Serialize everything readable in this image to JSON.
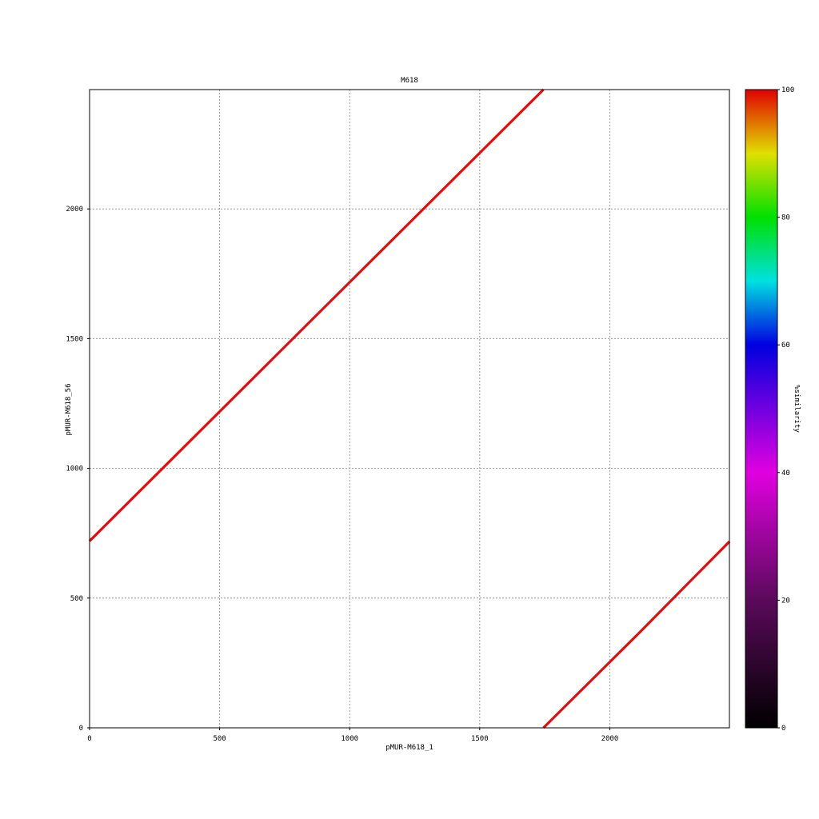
{
  "chart_data": {
    "type": "scatter",
    "title": "M618",
    "xlabel": "pMUR-M618_1",
    "ylabel": "pMUR-M618_56",
    "xlim": [
      0,
      2460
    ],
    "ylim": [
      0,
      2460
    ],
    "x_ticks": [
      0,
      500,
      1000,
      1500,
      2000
    ],
    "y_ticks": [
      0,
      500,
      1000,
      1500,
      2000
    ],
    "grid": true,
    "series": [
      {
        "x": [
          0,
          880
        ],
        "y": [
          720,
          1598
        ],
        "similarity": 99
      },
      {
        "x": [
          880,
          1745
        ],
        "y": [
          1598,
          2460
        ],
        "similarity": 99
      },
      {
        "x": [
          1745,
          2110
        ],
        "y": [
          0,
          363
        ],
        "similarity": 99
      },
      {
        "x": [
          2110,
          2460
        ],
        "y": [
          363,
          718
        ],
        "similarity": 99
      }
    ],
    "line_color": "#dd0f0f",
    "colorbar": {
      "label": "%similarity",
      "range": [
        0,
        100
      ],
      "ticks": [
        0,
        20,
        40,
        60,
        80,
        100
      ],
      "stops": [
        {
          "value": 0,
          "color": "#000000"
        },
        {
          "value": 20,
          "color": "#5a0a5a"
        },
        {
          "value": 40,
          "color": "#e000e0"
        },
        {
          "value": 60,
          "color": "#0000e0"
        },
        {
          "value": 70,
          "color": "#00e0e0"
        },
        {
          "value": 80,
          "color": "#00e000"
        },
        {
          "value": 90,
          "color": "#e0e000"
        },
        {
          "value": 100,
          "color": "#e00000"
        }
      ]
    }
  }
}
